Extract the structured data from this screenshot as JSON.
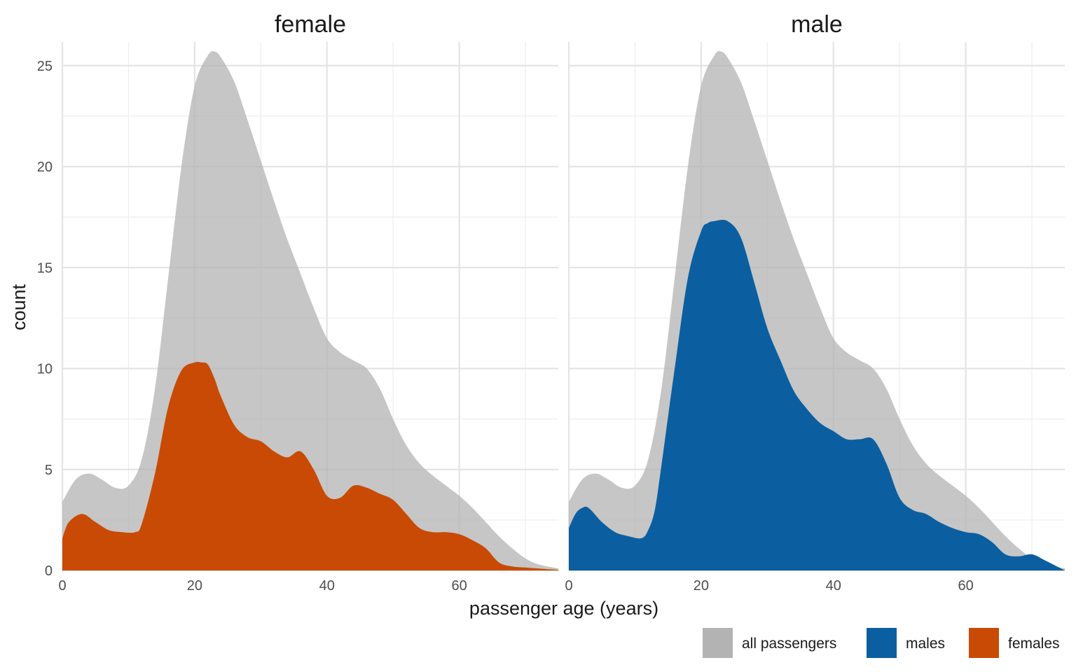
{
  "chart_data": {
    "type": "area",
    "xlabel": "passenger age (years)",
    "ylabel": "count",
    "xlim": [
      0,
      75
    ],
    "ylim": [
      0,
      26
    ],
    "x_ticks": [
      0,
      20,
      40,
      60
    ],
    "y_ticks": [
      0,
      5,
      10,
      15,
      20,
      25
    ],
    "grid": true,
    "legend_position": "bottom-right",
    "colors": {
      "all passengers": "#b3b3b3",
      "males": "#0b5fa0",
      "females": "#c94a04"
    },
    "legend": [
      {
        "label": "all passengers",
        "color": "#b3b3b3"
      },
      {
        "label": "males",
        "color": "#0b5fa0"
      },
      {
        "label": "females",
        "color": "#c94a04"
      }
    ],
    "all_passengers": {
      "x": [
        0,
        2,
        4,
        6,
        8,
        10,
        12,
        14,
        16,
        18,
        20,
        22,
        23,
        24,
        26,
        28,
        30,
        32,
        34,
        36,
        38,
        40,
        42,
        44,
        46,
        48,
        50,
        52,
        54,
        56,
        58,
        60,
        62,
        64,
        66,
        68,
        70,
        72,
        75
      ],
      "y": [
        3.4,
        4.5,
        4.8,
        4.5,
        4.1,
        4.2,
        5.5,
        9.0,
        14.5,
        20.0,
        24.0,
        25.5,
        25.7,
        25.4,
        24.2,
        22.3,
        20.3,
        18.3,
        16.4,
        14.7,
        13.0,
        11.5,
        10.8,
        10.4,
        10.0,
        9.0,
        7.5,
        6.2,
        5.3,
        4.7,
        4.2,
        3.7,
        3.1,
        2.4,
        1.7,
        1.1,
        0.6,
        0.3,
        0.1
      ]
    },
    "panels": [
      {
        "facet": "female",
        "series": "females",
        "x": [
          0,
          1,
          3,
          5,
          7,
          9,
          11,
          12,
          14,
          16,
          18,
          20,
          21,
          22,
          23,
          24,
          26,
          28,
          30,
          32,
          34,
          36,
          38,
          40,
          42,
          44,
          46,
          48,
          50,
          52,
          54,
          56,
          58,
          60,
          62,
          64,
          66,
          68,
          70,
          72,
          75
        ],
        "y": [
          1.6,
          2.4,
          2.8,
          2.4,
          2.0,
          1.9,
          1.9,
          2.3,
          4.8,
          8.1,
          9.9,
          10.3,
          10.3,
          10.2,
          9.5,
          8.6,
          7.2,
          6.6,
          6.4,
          5.9,
          5.6,
          5.9,
          5.0,
          3.7,
          3.6,
          4.2,
          4.1,
          3.8,
          3.5,
          2.8,
          2.1,
          1.9,
          1.9,
          1.8,
          1.5,
          1.1,
          0.4,
          0.2,
          0.15,
          0.1,
          0.03
        ]
      },
      {
        "facet": "male",
        "series": "males",
        "x": [
          0,
          1,
          2,
          3,
          5,
          7,
          9,
          11,
          12,
          13,
          14,
          16,
          18,
          20,
          21,
          22,
          24,
          26,
          28,
          30,
          32,
          34,
          36,
          38,
          40,
          42,
          44,
          46,
          48,
          50,
          52,
          54,
          56,
          58,
          60,
          62,
          64,
          66,
          68,
          70,
          72,
          75
        ],
        "y": [
          2.1,
          2.8,
          3.1,
          3.1,
          2.4,
          1.9,
          1.7,
          1.6,
          2.0,
          3.0,
          5.2,
          10.0,
          14.5,
          16.8,
          17.2,
          17.3,
          17.3,
          16.5,
          14.3,
          12.0,
          10.4,
          8.9,
          8.0,
          7.3,
          6.9,
          6.5,
          6.5,
          6.5,
          5.3,
          3.6,
          3.0,
          2.8,
          2.4,
          2.1,
          1.9,
          1.8,
          1.4,
          0.8,
          0.7,
          0.8,
          0.5,
          0.0
        ]
      }
    ]
  }
}
